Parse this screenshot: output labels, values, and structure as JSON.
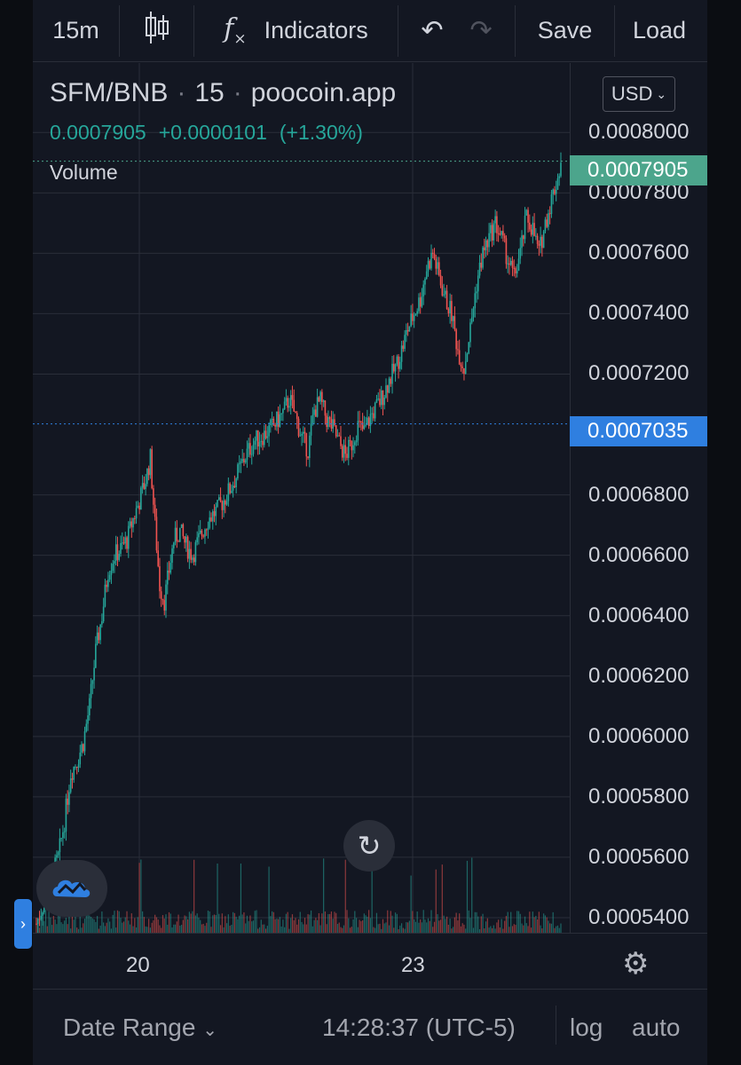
{
  "toolbar": {
    "interval": "15m",
    "indicators_label": "Indicators",
    "save_label": "Save",
    "load_label": "Load"
  },
  "legend": {
    "symbol": "SFM/BNB",
    "interval": "15",
    "source": "poocoin.app",
    "price": "0.0007905",
    "change": "+0.0000101",
    "change_pct": "(+1.30%)",
    "volume_label": "Volume"
  },
  "currency_button": "USD",
  "price_tags": {
    "last": "0.0007905",
    "reference": "0.0007035"
  },
  "time_labels": [
    "20",
    "23"
  ],
  "footer": {
    "date_range": "Date Range",
    "clock": "14:28:37 (UTC-5)",
    "log": "log",
    "auto": "auto"
  },
  "colors": {
    "background": "#131722",
    "up": "#26a69a",
    "down": "#ef5350",
    "last_tag": "#4ca58c",
    "reference_tag": "#2f7fe0"
  },
  "chart_data": {
    "type": "candlestick",
    "x_ticks": [
      "20",
      "23"
    ],
    "y_ticks": [
      "0.0008000",
      "0.0007800",
      "0.0007600",
      "0.0007400",
      "0.0007200",
      "0.0006800",
      "0.0006600",
      "0.0006400",
      "0.0006200",
      "0.0006000",
      "0.0005800",
      "0.0005600",
      "0.0005400"
    ],
    "ylim": [
      0.000535,
      0.000823
    ],
    "last_price": 0.0007905,
    "reference_price": 0.0007035,
    "series_trend": [
      [
        0,
        0.000538
      ],
      [
        8,
        0.00055
      ],
      [
        14,
        0.00056
      ],
      [
        18,
        0.000572
      ],
      [
        22,
        0.000588
      ],
      [
        26,
        0.000592
      ],
      [
        30,
        0.000598
      ],
      [
        34,
        0.00061
      ],
      [
        38,
        0.000628
      ],
      [
        42,
        0.00064
      ],
      [
        46,
        0.000655
      ],
      [
        50,
        0.00066
      ],
      [
        54,
        0.000662
      ],
      [
        58,
        0.000665
      ],
      [
        62,
        0.000672
      ],
      [
        66,
        0.000678
      ],
      [
        70,
        0.000685
      ],
      [
        73,
        0.000692
      ],
      [
        76,
        0.00067
      ],
      [
        79,
        0.00065
      ],
      [
        82,
        0.000645
      ],
      [
        85,
        0.000655
      ],
      [
        88,
        0.000665
      ],
      [
        92,
        0.000668
      ],
      [
        96,
        0.000663
      ],
      [
        100,
        0.00066
      ],
      [
        104,
        0.000665
      ],
      [
        110,
        0.000672
      ],
      [
        116,
        0.000675
      ],
      [
        122,
        0.00068
      ],
      [
        128,
        0.000686
      ],
      [
        134,
        0.000693
      ],
      [
        140,
        0.000698
      ],
      [
        146,
        0.0007
      ],
      [
        152,
        0.000703
      ],
      [
        158,
        0.000707
      ],
      [
        162,
        0.000712
      ],
      [
        166,
        0.000706
      ],
      [
        170,
        0.000699
      ],
      [
        174,
        0.000695
      ],
      [
        178,
        0.000708
      ],
      [
        182,
        0.000711
      ],
      [
        186,
        0.000705
      ],
      [
        190,
        0.000702
      ],
      [
        194,
        0.000697
      ],
      [
        198,
        0.000693
      ],
      [
        202,
        0.000697
      ],
      [
        206,
        0.000703
      ],
      [
        210,
        0.000701
      ],
      [
        214,
        0.000706
      ],
      [
        218,
        0.000709
      ],
      [
        222,
        0.000713
      ],
      [
        226,
        0.000718
      ],
      [
        230,
        0.000722
      ],
      [
        234,
        0.000728
      ],
      [
        238,
        0.000735
      ],
      [
        242,
        0.00074
      ],
      [
        246,
        0.000745
      ],
      [
        250,
        0.000755
      ],
      [
        254,
        0.00076
      ],
      [
        258,
        0.000752
      ],
      [
        262,
        0.000745
      ],
      [
        266,
        0.00074
      ],
      [
        270,
        0.000728
      ],
      [
        274,
        0.000722
      ],
      [
        278,
        0.000735
      ],
      [
        282,
        0.00075
      ],
      [
        286,
        0.00076
      ],
      [
        290,
        0.000765
      ],
      [
        294,
        0.00077
      ],
      [
        298,
        0.000765
      ],
      [
        302,
        0.000758
      ],
      [
        306,
        0.000752
      ],
      [
        310,
        0.00076
      ],
      [
        314,
        0.000772
      ],
      [
        318,
        0.000768
      ],
      [
        322,
        0.00076
      ],
      [
        326,
        0.00077
      ],
      [
        330,
        0.000778
      ],
      [
        334,
        0.000785
      ],
      [
        336,
        0.00079
      ]
    ]
  }
}
